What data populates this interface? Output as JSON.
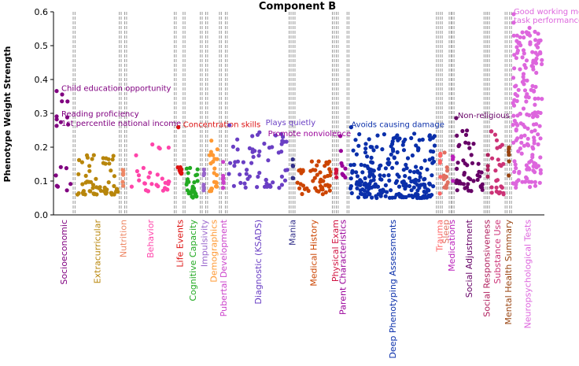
{
  "chart_data": {
    "type": "scatter",
    "title": "Component B",
    "xlabel": "",
    "ylabel": "Phenotype Weight Strength",
    "ylim": [
      0,
      0.6
    ],
    "yticks": [
      "0.0",
      "0.1",
      "0.2",
      "0.3",
      "0.4",
      "0.5",
      "0.6"
    ],
    "x_domain": [
      0,
      100
    ],
    "categories": [
      {
        "name": "Socioeconomic",
        "color": "#800080",
        "x": [
          0,
          4.2
        ],
        "n": 14,
        "ymin": 0.07,
        "ymax": 0.37
      },
      {
        "name": "Extracurricular",
        "color": "#b8860b",
        "x": [
          4.2,
          13.6
        ],
        "n": 60,
        "ymin": 0.06,
        "ymax": 0.18
      },
      {
        "name": "Nutrition",
        "color": "#ee8866",
        "x": [
          13.6,
          14.7
        ],
        "n": 6,
        "ymin": 0.08,
        "ymax": 0.18
      },
      {
        "name": "Behavior",
        "color": "#ff44aa",
        "x": [
          14.7,
          24.8
        ],
        "n": 30,
        "ymin": 0.07,
        "ymax": 0.21
      },
      {
        "name": "Life Events",
        "color": "#dd1111",
        "x": [
          24.8,
          26.6
        ],
        "n": 8,
        "ymin": 0.12,
        "ymax": 0.15
      },
      {
        "name": "Cognitive Capacity",
        "color": "#22aa22",
        "x": [
          26.6,
          30.1
        ],
        "n": 28,
        "ymin": 0.05,
        "ymax": 0.14
      },
      {
        "name": "Impulsivity",
        "color": "#9966cc",
        "x": [
          30.1,
          31.2
        ],
        "n": 8,
        "ymin": 0.07,
        "ymax": 0.17
      },
      {
        "name": "Demographics",
        "color": "#ff9933",
        "x": [
          31.2,
          34.0
        ],
        "n": 22,
        "ymin": 0.07,
        "ymax": 0.22
      },
      {
        "name": "Pubertal Development",
        "color": "#cc44cc",
        "x": [
          34.0,
          35.2
        ],
        "n": 8,
        "ymin": 0.08,
        "ymax": 0.16
      },
      {
        "name": "Diagnostic (KSADS)",
        "color": "#6a3fc4",
        "x": [
          35.2,
          48.2
        ],
        "n": 60,
        "ymin": 0.08,
        "ymax": 0.25
      },
      {
        "name": "Mania",
        "color": "#33308a",
        "x": [
          48.2,
          49.0
        ],
        "n": 5,
        "ymin": 0.08,
        "ymax": 0.19
      },
      {
        "name": "Medical History",
        "color": "#cc4400",
        "x": [
          49.0,
          57.0
        ],
        "n": 50,
        "ymin": 0.06,
        "ymax": 0.16
      },
      {
        "name": "Physical Exam",
        "color": "#d1123f",
        "x": [
          57.0,
          57.8
        ],
        "n": 4,
        "ymin": 0.09,
        "ymax": 0.15
      },
      {
        "name": "Parent Characteristics",
        "color": "#990099",
        "x": [
          57.8,
          60.0
        ],
        "n": 8,
        "ymin": 0.1,
        "ymax": 0.24
      },
      {
        "name": "Deep Phenotyping Assessments",
        "color": "#0a2faa",
        "x": [
          60.0,
          78.2
        ],
        "n": 240,
        "ymin": 0.05,
        "ymax": 0.24
      },
      {
        "name": "Trauma",
        "color": "#ff6666",
        "x": [
          78.2,
          79.0
        ],
        "n": 6,
        "ymin": 0.06,
        "ymax": 0.19
      },
      {
        "name": "Sleep",
        "color": "#e07060",
        "x": [
          79.0,
          80.8
        ],
        "n": 14,
        "ymin": 0.08,
        "ymax": 0.19
      },
      {
        "name": "Medications",
        "color": "#bb22bb",
        "x": [
          80.8,
          81.4
        ],
        "n": 4,
        "ymin": 0.1,
        "ymax": 0.27
      },
      {
        "name": "Social Adjustment",
        "color": "#660066",
        "x": [
          81.4,
          87.9
        ],
        "n": 45,
        "ymin": 0.07,
        "ymax": 0.26
      },
      {
        "name": "Social Responsiveness",
        "color": "#b0205e",
        "x": [
          87.9,
          88.6
        ],
        "n": 4,
        "ymin": 0.08,
        "ymax": 0.18
      },
      {
        "name": "Substance Use",
        "color": "#cc3377",
        "x": [
          88.6,
          92.2
        ],
        "n": 26,
        "ymin": 0.06,
        "ymax": 0.25
      },
      {
        "name": "Mental Health Summary",
        "color": "#994411",
        "x": [
          92.2,
          93.1
        ],
        "n": 6,
        "ymin": 0.1,
        "ymax": 0.24
      },
      {
        "name": "Neuropsychological Tests",
        "color": "#dd66dd",
        "x": [
          93.1,
          100
        ],
        "n": 175,
        "ymin": 0.08,
        "ymax": 0.56
      }
    ],
    "annotations": [
      {
        "text": "Child education opportunity",
        "category": "Socioeconomic",
        "y": 0.373
      },
      {
        "text": "Reading proficiency",
        "category": "Socioeconomic",
        "y": 0.298
      },
      {
        "text": "1st percentile national income",
        "category": "Socioeconomic",
        "y": 0.27
      },
      {
        "text": "Concentration skills",
        "category": "Life Events",
        "y": 0.266
      },
      {
        "text": "Plays quietly",
        "category": "Diagnostic (KSADS)",
        "y": 0.272
      },
      {
        "text": "Promote nonviolence",
        "category": "Parent Characteristics",
        "y": 0.24
      },
      {
        "text": "Avoids causing damage",
        "category": "Deep Phenotyping Assessments",
        "y": 0.266
      },
      {
        "text": "Non-religious",
        "category": "Social Adjustment",
        "y": 0.293
      },
      {
        "text": "Good working mem,",
        "category": "Neuropsychological Tests",
        "y": 0.6
      },
      {
        "text": "task performance",
        "category": "Neuropsychological Tests",
        "y": 0.575
      }
    ]
  }
}
